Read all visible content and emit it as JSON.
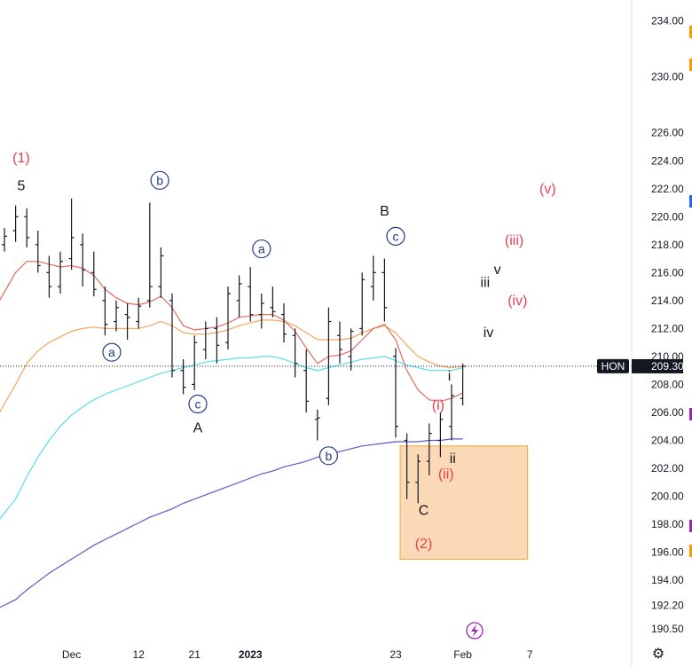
{
  "chart_data": {
    "type": "ohlc-bar",
    "symbol": "HON",
    "last_price": "209.30",
    "ylim": [
      189.5,
      235.5
    ],
    "y_ticks": [
      234.0,
      230.0,
      226.0,
      224.0,
      222.0,
      220.0,
      218.0,
      216.0,
      214.0,
      212.0,
      210.0,
      208.0,
      206.0,
      204.0,
      202.0,
      200.0,
      198.0,
      196.0,
      194.0,
      192.2,
      190.5
    ],
    "y_tick_labels": [
      "234.00",
      "230.00",
      "226.00",
      "224.00",
      "222.00",
      "220.00",
      "218.00",
      "216.00",
      "214.00",
      "212.00",
      "210.00",
      "208.00",
      "206.00",
      "204.00",
      "202.00",
      "200.00",
      "198.00",
      "196.00",
      "194.00",
      "192.20",
      "190.50"
    ],
    "x_ticks": [
      {
        "label": "Dec",
        "x": 6,
        "bold": false
      },
      {
        "label": "12",
        "x": 12,
        "bold": false
      },
      {
        "label": "21",
        "x": 17,
        "bold": false
      },
      {
        "label": "2023",
        "x": 22,
        "bold": true
      },
      {
        "label": "23",
        "x": 35,
        "bold": false
      },
      {
        "label": "Feb",
        "x": 41,
        "bold": false
      },
      {
        "label": "7",
        "x": 47,
        "bold": false
      }
    ],
    "bars": [
      [
        218.0,
        219.2,
        217.5,
        218.6
      ],
      [
        219.0,
        220.8,
        218.2,
        220.0
      ],
      [
        220.0,
        220.6,
        217.8,
        218.5
      ],
      [
        218.0,
        219.0,
        216.0,
        216.5
      ],
      [
        216.0,
        217.2,
        214.2,
        215.0
      ],
      [
        215.0,
        217.5,
        214.5,
        216.8
      ],
      [
        217.0,
        221.3,
        216.2,
        218.5
      ],
      [
        218.0,
        218.8,
        215.0,
        216.2
      ],
      [
        216.0,
        217.5,
        214.3,
        214.8
      ],
      [
        214.0,
        215.0,
        211.5,
        212.3
      ],
      [
        212.5,
        214.0,
        211.8,
        213.5
      ],
      [
        213.0,
        213.8,
        211.2,
        212.8
      ],
      [
        212.5,
        214.2,
        212.0,
        213.6
      ],
      [
        214.0,
        221.0,
        213.5,
        215.0
      ],
      [
        215.0,
        217.8,
        214.2,
        217.2
      ],
      [
        214.0,
        214.5,
        208.5,
        209.0
      ],
      [
        209.0,
        209.8,
        207.3,
        207.8
      ],
      [
        208.0,
        211.5,
        207.6,
        211.0
      ],
      [
        210.5,
        212.5,
        209.8,
        212.0
      ],
      [
        212.0,
        212.8,
        209.5,
        210.8
      ],
      [
        211.0,
        215.0,
        210.5,
        214.5
      ],
      [
        214.0,
        215.8,
        212.8,
        215.2
      ],
      [
        215.0,
        216.4,
        212.5,
        213.0
      ],
      [
        213.0,
        214.5,
        212.0,
        213.8
      ],
      [
        213.5,
        215.0,
        212.8,
        213.2
      ],
      [
        213.0,
        213.8,
        211.0,
        211.6
      ],
      [
        211.5,
        212.0,
        208.5,
        209.5
      ],
      [
        209.0,
        210.5,
        206.0,
        206.8
      ],
      [
        205.5,
        206.2,
        204.0,
        205.6
      ],
      [
        207.0,
        213.5,
        206.5,
        212.5
      ],
      [
        211.5,
        212.5,
        209.5,
        210.5
      ],
      [
        210.0,
        212.0,
        209.0,
        211.8
      ],
      [
        212.0,
        216.0,
        211.5,
        215.5
      ],
      [
        215.0,
        217.2,
        214.0,
        216.0
      ],
      [
        216.0,
        217.0,
        212.5,
        213.5
      ],
      [
        210.0,
        210.6,
        204.2,
        205.0
      ],
      [
        204.0,
        204.5,
        199.8,
        201.0
      ],
      [
        201.0,
        203.0,
        199.5,
        202.5
      ],
      [
        202.5,
        205.2,
        201.5,
        204.5
      ],
      [
        204.0,
        206.0,
        202.8,
        205.5
      ],
      [
        205.0,
        208.0,
        204.0,
        207.2
      ],
      [
        207.0,
        209.5,
        206.5,
        209.3
      ]
    ],
    "ema_red": [
      213.5,
      216.0,
      216.8,
      216.8,
      216.6,
      216.4,
      216.5,
      216.3,
      215.8,
      214.8,
      214.2,
      213.8,
      213.7,
      213.9,
      214.3,
      213.5,
      212.2,
      211.9,
      212.0,
      212.1,
      212.4,
      212.8,
      212.9,
      213.0,
      213.0,
      212.6,
      211.8,
      210.6,
      209.5,
      210.0,
      210.1,
      210.4,
      211.2,
      212.0,
      212.3,
      211.2,
      209.0,
      207.6,
      206.9,
      206.8,
      207.0,
      207.4
    ],
    "ema_orange": [
      205.5,
      208.0,
      209.5,
      210.4,
      211.0,
      211.4,
      211.8,
      212.0,
      212.1,
      212.0,
      212.0,
      212.0,
      212.0,
      212.2,
      212.5,
      212.2,
      211.7,
      211.6,
      211.6,
      211.7,
      211.9,
      212.2,
      212.4,
      212.6,
      212.6,
      212.5,
      212.2,
      211.7,
      211.2,
      211.2,
      211.2,
      211.3,
      211.7,
      212.0,
      212.2,
      211.7,
      210.8,
      210.0,
      209.6,
      209.3,
      209.2,
      209.3
    ],
    "sma_cyan": [
      198.0,
      199.8,
      201.4,
      202.8,
      204.0,
      205.0,
      205.8,
      206.4,
      206.9,
      207.3,
      207.6,
      207.9,
      208.2,
      208.5,
      208.8,
      209.0,
      209.2,
      209.4,
      209.6,
      209.7,
      209.8,
      209.9,
      209.9,
      210.0,
      210.0,
      209.8,
      209.5,
      209.2,
      209.0,
      209.2,
      209.4,
      209.6,
      209.8,
      209.9,
      210.0,
      209.7,
      209.4,
      209.2,
      209.0,
      209.0,
      209.0,
      209.2
    ],
    "sma_blue": [
      191.9,
      192.6,
      193.3,
      193.9,
      194.5,
      195.0,
      195.5,
      196.0,
      196.5,
      196.9,
      197.3,
      197.7,
      198.1,
      198.5,
      198.8,
      199.1,
      199.5,
      199.8,
      200.1,
      200.4,
      200.7,
      201.0,
      201.3,
      201.6,
      201.8,
      202.1,
      202.3,
      202.5,
      202.8,
      203.0,
      203.2,
      203.4,
      203.6,
      203.7,
      203.8,
      203.9,
      203.9,
      203.9,
      204.0,
      204.0,
      204.1,
      204.1
    ],
    "target_zone": {
      "x_start": 35.4,
      "x_end": 46.8,
      "top": 203.6,
      "bottom": 195.5
    },
    "wave_labels": [
      {
        "text": "(1)",
        "x": 1.5,
        "y": 224.2,
        "color": "#e8404f",
        "circled": false
      },
      {
        "text": "5",
        "x": 1.5,
        "y": 222.2,
        "color": "#131722",
        "circled": false
      },
      {
        "text": "a",
        "x": 9.6,
        "y": 210.3,
        "color": "#1e3a8a",
        "circled": true
      },
      {
        "text": "b",
        "x": 13.9,
        "y": 222.6,
        "color": "#1e3a8a",
        "circled": true
      },
      {
        "text": "c",
        "x": 17.3,
        "y": 206.6,
        "color": "#1e3a8a",
        "circled": true
      },
      {
        "text": "A",
        "x": 17.3,
        "y": 204.9,
        "color": "#131722",
        "circled": false
      },
      {
        "text": "a",
        "x": 23.0,
        "y": 217.7,
        "color": "#1e3a8a",
        "circled": true
      },
      {
        "text": "b",
        "x": 29.0,
        "y": 202.9,
        "color": "#1e3a8a",
        "circled": true
      },
      {
        "text": "B",
        "x": 34.0,
        "y": 220.4,
        "color": "#131722",
        "circled": false
      },
      {
        "text": "c",
        "x": 35.0,
        "y": 218.6,
        "color": "#1e3a8a",
        "circled": true
      },
      {
        "text": "C",
        "x": 37.5,
        "y": 199.0,
        "color": "#131722",
        "circled": false
      },
      {
        "text": "(2)",
        "x": 37.5,
        "y": 196.6,
        "color": "#e8404f",
        "circled": false
      },
      {
        "text": "(i)",
        "x": 38.8,
        "y": 206.5,
        "color": "#e8404f",
        "circled": false
      },
      {
        "text": "(ii)",
        "x": 39.5,
        "y": 201.6,
        "color": "#e8404f",
        "circled": false
      },
      {
        "text": "i",
        "x": 39.8,
        "y": 208.6,
        "color": "#131722",
        "circled": false
      },
      {
        "text": "ii",
        "x": 40.1,
        "y": 202.7,
        "color": "#131722",
        "circled": false
      },
      {
        "text": "iii",
        "x": 43.0,
        "y": 215.3,
        "color": "#131722",
        "circled": false
      },
      {
        "text": "v",
        "x": 44.1,
        "y": 216.2,
        "color": "#131722",
        "circled": false
      },
      {
        "text": "iv",
        "x": 43.3,
        "y": 211.7,
        "color": "#131722",
        "circled": false
      },
      {
        "text": "(iii)",
        "x": 45.6,
        "y": 218.3,
        "color": "#e8404f",
        "circled": false
      },
      {
        "text": "(iv)",
        "x": 45.9,
        "y": 214.0,
        "color": "#e8404f",
        "circled": false
      },
      {
        "text": "(v)",
        "x": 48.6,
        "y": 222.0,
        "color": "#e8404f",
        "circled": false
      }
    ],
    "price_tag_color": "#131722",
    "colors": {
      "bars": "#131722",
      "ema_red": "#e8685e",
      "ema_orange": "#f5a55a",
      "sma_cyan": "#56e0e8",
      "sma_blue": "#5b57c8",
      "target_fill": "#fcd9b6",
      "target_border": "#e6a93a",
      "circle_stroke": "#1e3a8a",
      "axis_text": "#131722",
      "axis_border": "#e0e3eb",
      "lightning": "#9c27b0"
    },
    "side_markers": [
      {
        "color": "#ff9800",
        "value": 233.2
      },
      {
        "color": "#ff9800",
        "value": 230.9
      },
      {
        "color": "#2962ff",
        "value": 221.1
      },
      {
        "color": "#9c27b0",
        "value": 205.9
      },
      {
        "color": "#9c27b0",
        "value": 197.9
      },
      {
        "color": "#ff9800",
        "value": 196.1
      }
    ]
  },
  "ui": {
    "settings_icon": "gear-icon",
    "event_icon": "lightning-icon"
  }
}
